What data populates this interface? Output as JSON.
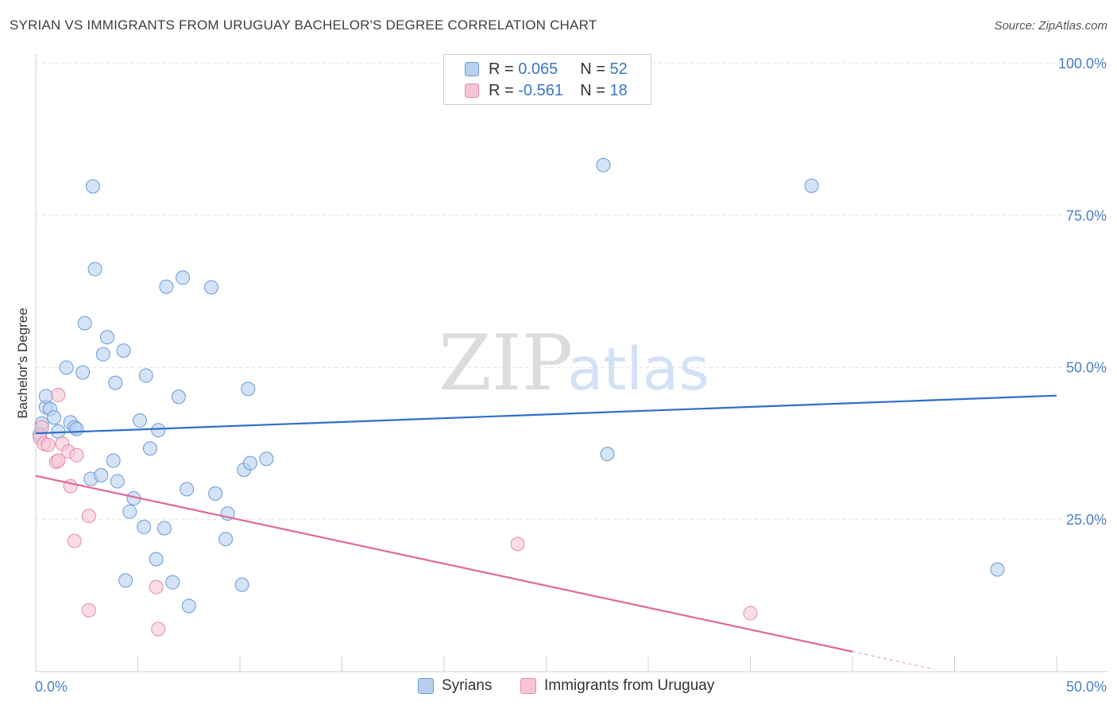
{
  "header": {
    "title": "SYRIAN VS IMMIGRANTS FROM URUGUAY BACHELOR'S DEGREE CORRELATION CHART",
    "source": "Source: ZipAtlas.com"
  },
  "legend": {
    "rows": [
      {
        "r_label": "R =",
        "r_value": "0.065",
        "n_label": "N =",
        "n_value": "52"
      },
      {
        "r_label": "R =",
        "r_value": "-0.561",
        "n_label": "N =",
        "n_value": "18"
      }
    ]
  },
  "bottom_legend": {
    "series1": "Syrians",
    "series2": "Immigrants from Uruguay"
  },
  "watermark": {
    "zip": "ZIP",
    "atlas": "atlas"
  },
  "colors": {
    "blue_fill": "#b8d0f0",
    "blue_stroke": "#6a9ad8",
    "blue_line": "#2e6fcc",
    "pink_fill": "#f6c4d4",
    "pink_stroke": "#e58aa8",
    "pink_line": "#e0689a"
  },
  "chart_data": {
    "type": "scatter",
    "title": "SYRIAN VS IMMIGRANTS FROM URUGUAY BACHELOR'S DEGREE CORRELATION CHART",
    "xlabel": "",
    "ylabel": "Bachelor's Degree",
    "xlim": [
      0,
      50
    ],
    "ylim": [
      0,
      105
    ],
    "x_tick_labels": [
      "0.0%",
      "50.0%"
    ],
    "y_ticks": [
      {
        "value": 25,
        "label": "25.0%"
      },
      {
        "value": 50,
        "label": "50.0%"
      },
      {
        "value": 75,
        "label": "75.0%"
      },
      {
        "value": 100,
        "label": "100.0%"
      }
    ],
    "series": [
      {
        "name": "Syrians",
        "R": 0.065,
        "N": 52,
        "trend": {
          "x": [
            0,
            50
          ],
          "y": [
            39.2,
            45.4
          ]
        },
        "points": [
          [
            0.3,
            40.8
          ],
          [
            0.5,
            43.5
          ],
          [
            0.5,
            45.3
          ],
          [
            0.7,
            43.2
          ],
          [
            0.9,
            41.8
          ],
          [
            1.1,
            39.5
          ],
          [
            1.7,
            41.0
          ],
          [
            1.9,
            40.2
          ],
          [
            2.0,
            39.9
          ],
          [
            1.5,
            50.0
          ],
          [
            2.3,
            49.2
          ],
          [
            2.4,
            57.3
          ],
          [
            2.7,
            31.7
          ],
          [
            2.8,
            79.8
          ],
          [
            2.9,
            66.2
          ],
          [
            3.2,
            32.3
          ],
          [
            3.3,
            52.2
          ],
          [
            3.5,
            55.0
          ],
          [
            3.8,
            34.7
          ],
          [
            3.9,
            47.5
          ],
          [
            4.0,
            31.3
          ],
          [
            4.3,
            52.8
          ],
          [
            4.4,
            15.0
          ],
          [
            4.6,
            26.3
          ],
          [
            4.8,
            28.5
          ],
          [
            5.1,
            41.3
          ],
          [
            5.3,
            23.8
          ],
          [
            5.4,
            48.7
          ],
          [
            5.6,
            36.7
          ],
          [
            5.9,
            18.5
          ],
          [
            6.0,
            39.7
          ],
          [
            6.3,
            23.6
          ],
          [
            6.4,
            63.3
          ],
          [
            6.7,
            14.7
          ],
          [
            7.0,
            45.2
          ],
          [
            7.2,
            64.8
          ],
          [
            7.4,
            30.0
          ],
          [
            7.5,
            10.8
          ],
          [
            8.6,
            63.2
          ],
          [
            8.8,
            29.3
          ],
          [
            9.3,
            21.8
          ],
          [
            9.4,
            26.0
          ],
          [
            10.1,
            14.3
          ],
          [
            10.4,
            46.5
          ],
          [
            10.2,
            33.2
          ],
          [
            10.5,
            34.3
          ],
          [
            11.3,
            35.0
          ],
          [
            27.8,
            83.3
          ],
          [
            28.0,
            35.8
          ],
          [
            38.0,
            79.9
          ],
          [
            47.1,
            16.8
          ],
          [
            0.2,
            39.0
          ]
        ]
      },
      {
        "name": "Immigrants from Uruguay",
        "R": -0.561,
        "N": 18,
        "trend": {
          "x": [
            0,
            40
          ],
          "y": [
            32.2,
            3.3
          ]
        },
        "trend_dashed": {
          "x": [
            40,
            44
          ],
          "y": [
            3.3,
            0.4
          ]
        },
        "points": [
          [
            0.2,
            38.5
          ],
          [
            0.3,
            40.2
          ],
          [
            0.4,
            37.5
          ],
          [
            0.6,
            37.3
          ],
          [
            1.0,
            34.5
          ],
          [
            1.1,
            34.7
          ],
          [
            1.1,
            45.5
          ],
          [
            1.3,
            37.5
          ],
          [
            1.6,
            36.2
          ],
          [
            1.7,
            30.5
          ],
          [
            1.9,
            21.5
          ],
          [
            2.0,
            35.6
          ],
          [
            2.6,
            10.1
          ],
          [
            2.6,
            25.6
          ],
          [
            5.9,
            13.9
          ],
          [
            6.0,
            7.0
          ],
          [
            23.6,
            21.0
          ],
          [
            35.0,
            9.6
          ]
        ]
      }
    ]
  }
}
